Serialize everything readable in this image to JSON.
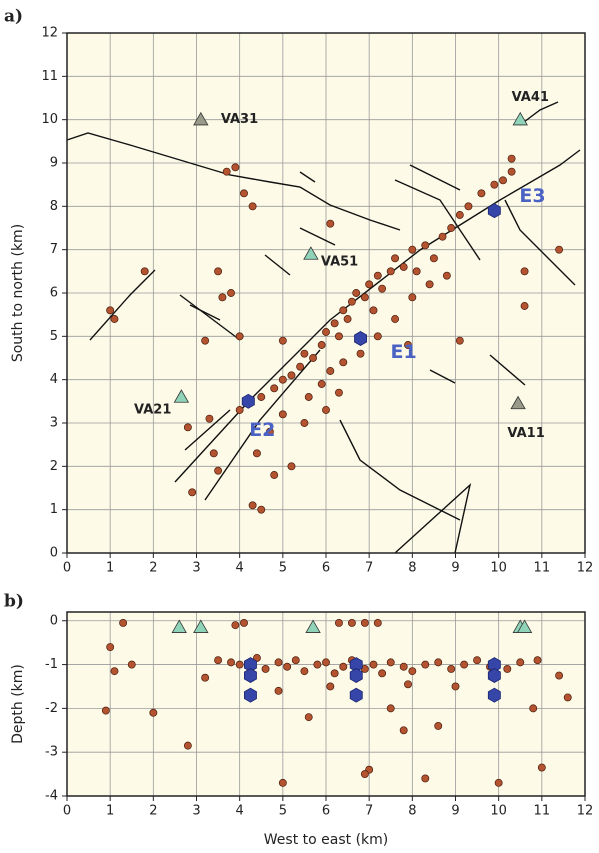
{
  "chart_data": [
    {
      "type": "scatter",
      "panel_label": "a)",
      "ylabel": "South to north (km)",
      "xlim": [
        0,
        12
      ],
      "ylim": [
        0,
        12
      ],
      "xticks": [
        0,
        1,
        2,
        3,
        4,
        5,
        6,
        7,
        8,
        9,
        10,
        11,
        12
      ],
      "yticks": [
        0,
        1,
        2,
        3,
        4,
        5,
        6,
        7,
        8,
        9,
        10,
        11,
        12
      ],
      "grid": true,
      "point_color": "#b4532f",
      "station_color": "#8fd3b9",
      "event_color": "#3545a8",
      "event_label_color": "#4a62c4",
      "stations": [
        {
          "label": "VA31",
          "x": 3.1,
          "y": 10.0,
          "color": "#9a9a8a"
        },
        {
          "label": "VA41",
          "x": 10.5,
          "y": 10.0
        },
        {
          "label": "VA51",
          "x": 5.65,
          "y": 6.9
        },
        {
          "label": "VA21",
          "x": 2.65,
          "y": 3.6
        },
        {
          "label": "VA11",
          "x": 10.45,
          "y": 3.45,
          "color": "#9a9a8a"
        }
      ],
      "events": [
        {
          "label": "E1",
          "x": 6.8,
          "y": 4.95
        },
        {
          "label": "E2",
          "x": 4.2,
          "y": 3.5
        },
        {
          "label": "E3",
          "x": 9.9,
          "y": 7.9
        }
      ],
      "x": [
        4.5,
        4.8,
        5.0,
        5.2,
        5.4,
        5.5,
        5.7,
        5.9,
        6.0,
        6.2,
        6.3,
        6.4,
        6.5,
        6.6,
        6.7,
        6.9,
        7.0,
        7.1,
        7.2,
        7.3,
        7.5,
        7.6,
        7.8,
        8.0,
        8.1,
        8.3,
        8.5,
        8.7,
        8.9,
        9.1,
        9.3,
        9.6,
        9.9,
        10.1,
        10.3,
        5.6,
        5.9,
        6.1,
        6.4,
        6.8,
        7.2,
        7.6,
        8.0,
        8.4,
        8.8,
        5.0,
        5.5,
        6.0,
        6.3,
        4.7,
        4.4,
        4.8,
        5.2,
        4.3,
        4.5,
        3.3,
        3.5,
        2.9,
        3.4,
        4.0,
        3.7,
        3.9,
        4.1,
        4.3,
        3.8,
        3.6,
        3.5,
        1.1,
        1.0,
        1.8,
        2.8,
        10.6,
        10.6,
        11.4,
        10.3,
        6.1,
        9.1,
        5.0,
        7.9,
        4.0,
        3.2
      ],
      "y": [
        3.6,
        3.8,
        4.0,
        4.1,
        4.3,
        4.6,
        4.5,
        4.8,
        5.1,
        5.3,
        5.0,
        5.6,
        5.4,
        5.8,
        6.0,
        5.9,
        6.2,
        5.6,
        6.4,
        6.1,
        6.5,
        6.8,
        6.6,
        7.0,
        6.5,
        7.1,
        6.8,
        7.3,
        7.5,
        7.8,
        8.0,
        8.3,
        8.5,
        8.6,
        8.8,
        3.6,
        3.9,
        4.2,
        4.4,
        4.6,
        5.0,
        5.4,
        5.9,
        6.2,
        6.4,
        3.2,
        3.0,
        3.3,
        3.7,
        2.8,
        2.3,
        1.8,
        2.0,
        1.1,
        1.0,
        3.1,
        1.9,
        1.4,
        2.3,
        3.3,
        8.8,
        8.9,
        8.3,
        8.0,
        6.0,
        5.9,
        6.5,
        5.4,
        5.6,
        6.5,
        2.9,
        5.7,
        6.5,
        7.0,
        9.1,
        7.6,
        4.9,
        4.9,
        4.8,
        5.0,
        4.9
      ]
    },
    {
      "type": "scatter",
      "panel_label": "b)",
      "ylabel": "Depth (km)",
      "xlabel": "West to east (km)",
      "xlim": [
        0,
        12
      ],
      "ylim": [
        -4,
        0.2
      ],
      "xticks": [
        0,
        1,
        2,
        3,
        4,
        5,
        6,
        7,
        8,
        9,
        10,
        11,
        12
      ],
      "yticks": [
        -4,
        -3,
        -2,
        -1,
        0
      ],
      "grid": true,
      "point_color": "#b4532f",
      "station_color": "#8fd3b9",
      "event_color": "#3545a8",
      "stations": [
        {
          "x": 2.6,
          "y": -0.15
        },
        {
          "x": 3.1,
          "y": -0.15
        },
        {
          "x": 5.7,
          "y": -0.15
        },
        {
          "x": 10.5,
          "y": -0.15
        },
        {
          "x": 10.6,
          "y": -0.15
        }
      ],
      "events": [
        {
          "x": 4.25,
          "y": -1.0
        },
        {
          "x": 4.25,
          "y": -1.25
        },
        {
          "x": 4.25,
          "y": -1.7
        },
        {
          "x": 6.7,
          "y": -1.0
        },
        {
          "x": 6.7,
          "y": -1.25
        },
        {
          "x": 6.7,
          "y": -1.7
        },
        {
          "x": 9.9,
          "y": -1.0
        },
        {
          "x": 9.9,
          "y": -1.25
        },
        {
          "x": 9.9,
          "y": -1.7
        }
      ],
      "x": [
        1.0,
        1.1,
        0.9,
        1.5,
        2.0,
        2.8,
        3.2,
        3.5,
        3.8,
        4.0,
        4.4,
        4.6,
        4.9,
        5.1,
        5.3,
        5.5,
        5.8,
        6.0,
        6.2,
        6.4,
        6.6,
        6.9,
        7.1,
        7.3,
        7.5,
        7.8,
        8.0,
        8.3,
        8.6,
        8.9,
        9.2,
        9.5,
        9.8,
        10.2,
        10.5,
        10.9,
        11.4,
        11.6,
        11.0,
        10.0,
        8.3,
        7.0,
        6.9,
        5.0,
        6.3,
        6.6,
        6.9,
        7.2,
        5.6,
        7.5,
        8.6,
        4.9,
        6.1,
        7.9,
        9.0,
        3.9,
        4.1,
        1.3,
        10.8,
        7.8
      ],
      "y": [
        -0.6,
        -1.15,
        -2.05,
        -1.0,
        -2.1,
        -2.85,
        -1.3,
        -0.9,
        -0.95,
        -1.0,
        -0.85,
        -1.1,
        -0.95,
        -1.05,
        -0.9,
        -1.15,
        -1.0,
        -0.95,
        -1.2,
        -1.05,
        -0.9,
        -1.1,
        -1.0,
        -1.2,
        -0.95,
        -1.05,
        -1.15,
        -1.0,
        -0.95,
        -1.1,
        -1.0,
        -0.9,
        -1.05,
        -1.1,
        -0.95,
        -0.9,
        -1.25,
        -1.75,
        -3.35,
        -3.7,
        -3.6,
        -3.4,
        -3.5,
        -3.7,
        -0.05,
        -0.05,
        -0.05,
        -0.05,
        -2.2,
        -2.0,
        -2.4,
        -1.6,
        -1.5,
        -1.45,
        -1.5,
        -0.1,
        -0.05,
        -0.05,
        -2.0,
        -2.5
      ]
    }
  ]
}
